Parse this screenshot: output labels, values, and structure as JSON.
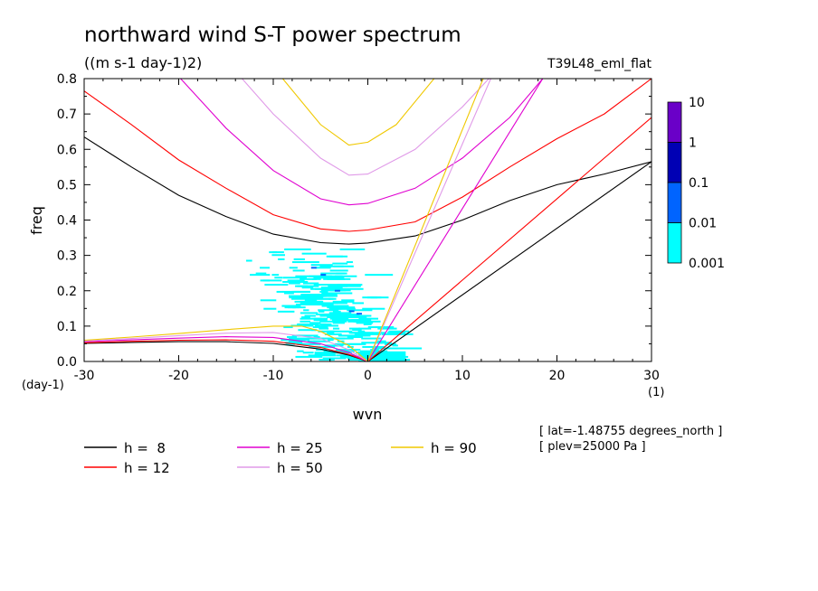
{
  "chart_data": {
    "type": "line",
    "title": "northward wind S-T power spectrum",
    "subtitle": "((m s-1 day-1)2)",
    "experiment": "T39L48_eml_flat",
    "xlabel": "wvn",
    "ylabel": "freq",
    "x_unit": "(1)",
    "y_unit": "(day-1)",
    "xlim": [
      -30,
      30
    ],
    "ylim": [
      0,
      0.8
    ],
    "x_ticks": [
      -30,
      -20,
      -10,
      0,
      10,
      20,
      30
    ],
    "x_tick_labels": [
      "-30",
      "-20",
      "-10",
      "0",
      "10",
      "20",
      "30"
    ],
    "y_ticks": [
      0,
      0.1,
      0.2,
      0.3,
      0.4,
      0.5,
      0.6,
      0.7,
      0.8
    ],
    "y_tick_labels": [
      "0.0",
      "0.1",
      "0.2",
      "0.3",
      "0.4",
      "0.5",
      "0.6",
      "0.7",
      "0.8"
    ],
    "grid": false,
    "legend_placement": "bottom",
    "series": [
      {
        "name": "h =  8",
        "color": "#000000",
        "kelvin": [
          [
            0,
            0
          ],
          [
            30,
            0.565
          ]
        ],
        "rossby": [
          [
            -30,
            0.051
          ],
          [
            -25,
            0.054
          ],
          [
            -20,
            0.056
          ],
          [
            -15,
            0.056
          ],
          [
            -10,
            0.051
          ],
          [
            -5,
            0.035
          ],
          [
            -2,
            0.018
          ],
          [
            0,
            0
          ]
        ],
        "ig": [
          [
            -30,
            0.635
          ],
          [
            -25,
            0.55
          ],
          [
            -20,
            0.47
          ],
          [
            -15,
            0.41
          ],
          [
            -10,
            0.36
          ],
          [
            -5,
            0.336
          ],
          [
            -2,
            0.332
          ],
          [
            0,
            0.335
          ],
          [
            5,
            0.355
          ],
          [
            10,
            0.4
          ],
          [
            15,
            0.455
          ],
          [
            20,
            0.5
          ],
          [
            25,
            0.53
          ],
          [
            30,
            0.565
          ]
        ]
      },
      {
        "name": "h = 12",
        "color": "#ff0000",
        "kelvin": [
          [
            0,
            0
          ],
          [
            30,
            0.69
          ]
        ],
        "rossby": [
          [
            -30,
            0.053
          ],
          [
            -25,
            0.057
          ],
          [
            -20,
            0.06
          ],
          [
            -15,
            0.061
          ],
          [
            -10,
            0.057
          ],
          [
            -5,
            0.04
          ],
          [
            -2,
            0.02
          ],
          [
            0,
            0
          ]
        ],
        "ig": [
          [
            -30,
            0.765
          ],
          [
            -25,
            0.67
          ],
          [
            -20,
            0.57
          ],
          [
            -15,
            0.49
          ],
          [
            -10,
            0.415
          ],
          [
            -5,
            0.375
          ],
          [
            -2,
            0.368
          ],
          [
            0,
            0.372
          ],
          [
            5,
            0.395
          ],
          [
            10,
            0.465
          ],
          [
            15,
            0.55
          ],
          [
            20,
            0.63
          ],
          [
            25,
            0.7
          ],
          [
            30,
            0.8
          ]
        ]
      },
      {
        "name": "h = 25",
        "color": "#e000d0",
        "kelvin": [
          [
            0,
            0
          ],
          [
            18.5,
            0.8
          ]
        ],
        "rossby": [
          [
            -30,
            0.056
          ],
          [
            -25,
            0.061
          ],
          [
            -20,
            0.066
          ],
          [
            -15,
            0.07
          ],
          [
            -10,
            0.068
          ],
          [
            -5,
            0.05
          ],
          [
            -2,
            0.025
          ],
          [
            0,
            0
          ]
        ],
        "ig": [
          [
            -19.8,
            0.8
          ],
          [
            -15,
            0.66
          ],
          [
            -10,
            0.54
          ],
          [
            -5,
            0.46
          ],
          [
            -2,
            0.443
          ],
          [
            0,
            0.447
          ],
          [
            5,
            0.49
          ],
          [
            10,
            0.575
          ],
          [
            15,
            0.69
          ],
          [
            18.5,
            0.8
          ]
        ]
      },
      {
        "name": "h = 50",
        "color": "#e09ae8",
        "kelvin": [
          [
            0,
            0
          ],
          [
            13,
            0.8
          ]
        ],
        "rossby": [
          [
            -30,
            0.058
          ],
          [
            -25,
            0.065
          ],
          [
            -20,
            0.073
          ],
          [
            -15,
            0.08
          ],
          [
            -10,
            0.082
          ],
          [
            -5,
            0.065
          ],
          [
            -2,
            0.033
          ],
          [
            0,
            0
          ]
        ],
        "ig": [
          [
            -13.3,
            0.8
          ],
          [
            -10,
            0.7
          ],
          [
            -5,
            0.575
          ],
          [
            -2,
            0.527
          ],
          [
            0,
            0.53
          ],
          [
            5,
            0.6
          ],
          [
            10,
            0.72
          ],
          [
            12.8,
            0.8
          ]
        ]
      },
      {
        "name": "h = 90",
        "color": "#f0c800",
        "kelvin": [
          [
            0,
            0
          ],
          [
            12.2,
            0.8
          ]
        ],
        "rossby": [
          [
            -30,
            0.06
          ],
          [
            -25,
            0.069
          ],
          [
            -20,
            0.079
          ],
          [
            -15,
            0.09
          ],
          [
            -10,
            0.1
          ],
          [
            -7,
            0.1
          ],
          [
            -5,
            0.085
          ],
          [
            -2,
            0.045
          ],
          [
            0,
            0
          ]
        ],
        "ig": [
          [
            -9,
            0.8
          ],
          [
            -5,
            0.67
          ],
          [
            -2,
            0.612
          ],
          [
            0,
            0.62
          ],
          [
            3,
            0.67
          ],
          [
            7,
            0.8
          ]
        ]
      }
    ],
    "colorbar": {
      "labels": [
        "10",
        "1",
        "0.1",
        "0.01",
        "0.001"
      ],
      "colors": [
        "#6a00c8",
        "#0000b4",
        "#0064ff",
        "#00ffff"
      ]
    },
    "shaded_region": {
      "description_levels": [
        "0.001",
        "0.01"
      ],
      "x_range": [
        -13,
        4
      ],
      "y_range": [
        0,
        0.32
      ]
    },
    "annotations": [
      "[ lat=-1.48755 degrees_north ]",
      "[ plev=25000 Pa ]"
    ]
  }
}
